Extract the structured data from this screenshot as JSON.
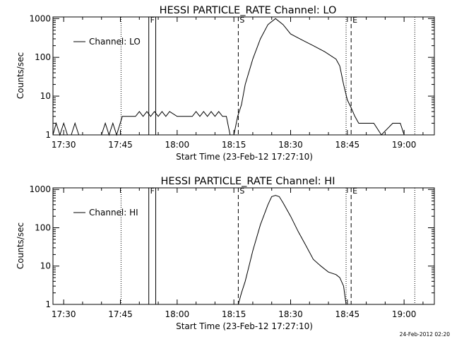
{
  "footer_timestamp": "24-Feb-2012 02:20",
  "chart_data": [
    {
      "type": "line",
      "title": "HESSI PARTICLE_RATE Channel: LO",
      "xlabel": "Start Time (23-Feb-12 17:27:10)",
      "ylabel": "Counts/sec",
      "yscale": "log",
      "xlim": [
        "17:27:10",
        "19:08:00"
      ],
      "ylim": [
        1,
        1100
      ],
      "x_ticks": [
        "17:30",
        "17:45",
        "18:00",
        "18:15",
        "18:30",
        "18:45",
        "19:00"
      ],
      "y_ticks": [
        "1",
        "10",
        "100",
        "1000"
      ],
      "legend": {
        "position": "top-left",
        "entries": [
          "Channel: LO"
        ]
      },
      "markers": [
        {
          "time": "17:52:30",
          "style": "solid",
          "label": "F"
        },
        {
          "time": "17:54:20",
          "style": "solid",
          "label": ""
        },
        {
          "time": "18:16:10",
          "style": "dashed",
          "label": "S"
        },
        {
          "time": "18:46:00",
          "style": "dashed",
          "label": "E"
        },
        {
          "time": "17:45:10",
          "style": "dotted",
          "label": ""
        },
        {
          "time": "18:44:40",
          "style": "dotted",
          "label": ""
        },
        {
          "time": "19:02:50",
          "style": "dotted",
          "label": ""
        }
      ],
      "series": [
        {
          "name": "Channel: LO",
          "x": [
            "17:27:10",
            "17:28:00",
            "17:29:00",
            "17:30:00",
            "17:31:00",
            "17:32:00",
            "17:33:00",
            "17:34:00",
            "17:36:00",
            "17:40:00",
            "17:41:00",
            "17:42:00",
            "17:43:00",
            "17:44:00",
            "17:45:30",
            "17:46:00",
            "17:47:00",
            "17:49:00",
            "17:50:00",
            "17:51:00",
            "17:52:00",
            "17:53:00",
            "17:54:00",
            "17:55:00",
            "17:56:00",
            "17:57:00",
            "17:58:00",
            "18:00:00",
            "18:02:00",
            "18:04:00",
            "18:05:00",
            "18:06:00",
            "18:07:00",
            "18:08:00",
            "18:09:00",
            "18:10:00",
            "18:11:00",
            "18:12:00",
            "18:13:00",
            "18:14:00",
            "18:15:00",
            "18:16:00",
            "18:17:00",
            "18:18:00",
            "18:20:00",
            "18:22:00",
            "18:24:00",
            "18:26:00",
            "18:28:00",
            "18:30:00",
            "18:33:00",
            "18:36:00",
            "18:39:00",
            "18:42:00",
            "18:43:00",
            "18:44:00",
            "18:45:00",
            "18:46:00",
            "18:47:00",
            "18:48:00",
            "18:49:00",
            "18:50:00",
            "18:51:00",
            "18:52:00",
            "18:54:00",
            "18:57:00",
            "18:59:00",
            "19:00:00",
            "19:01:00",
            "19:02:00",
            "19:03:00",
            "19:05:00",
            "19:07:00"
          ],
          "values": [
            1,
            2,
            1,
            2,
            1,
            1,
            2,
            1,
            1,
            1,
            2,
            1,
            2,
            1,
            3,
            3,
            3,
            3,
            4,
            3,
            4,
            3,
            4,
            3,
            4,
            3,
            4,
            3,
            3,
            3,
            4,
            3,
            4,
            3,
            4,
            3,
            4,
            3,
            3,
            1,
            1,
            3,
            6,
            20,
            90,
            300,
            700,
            1000,
            700,
            400,
            280,
            200,
            140,
            90,
            60,
            20,
            8,
            5,
            3,
            2,
            2,
            2,
            2,
            2,
            1,
            2,
            2,
            1,
            1,
            1,
            1,
            1,
            1
          ]
        }
      ]
    },
    {
      "type": "line",
      "title": "HESSI PARTICLE_RATE Channel: HI",
      "xlabel": "Start Time (23-Feb-12 17:27:10)",
      "ylabel": "Counts/sec",
      "yscale": "log",
      "xlim": [
        "17:27:10",
        "19:08:00"
      ],
      "ylim": [
        1,
        1100
      ],
      "x_ticks": [
        "17:30",
        "17:45",
        "18:00",
        "18:15",
        "18:30",
        "18:45",
        "19:00"
      ],
      "y_ticks": [
        "1",
        "10",
        "100",
        "1000"
      ],
      "legend": {
        "position": "top-left",
        "entries": [
          "Channel: HI"
        ]
      },
      "markers": [
        {
          "time": "17:52:30",
          "style": "solid",
          "label": "F"
        },
        {
          "time": "17:54:20",
          "style": "solid",
          "label": ""
        },
        {
          "time": "18:16:10",
          "style": "dashed",
          "label": "S"
        },
        {
          "time": "18:46:00",
          "style": "dashed",
          "label": "E"
        },
        {
          "time": "17:45:10",
          "style": "dotted",
          "label": ""
        },
        {
          "time": "18:44:40",
          "style": "dotted",
          "label": ""
        },
        {
          "time": "19:02:50",
          "style": "dotted",
          "label": ""
        }
      ],
      "series": [
        {
          "name": "Channel: HI",
          "x": [
            "18:16:10",
            "18:17:00",
            "18:18:00",
            "18:19:00",
            "18:20:00",
            "18:22:00",
            "18:24:00",
            "18:25:00",
            "18:26:00",
            "18:27:00",
            "18:28:00",
            "18:30:00",
            "18:32:00",
            "18:34:00",
            "18:36:00",
            "18:38:00",
            "18:40:00",
            "18:42:00",
            "18:43:00",
            "18:44:00",
            "18:44:40"
          ],
          "values": [
            1,
            2,
            4,
            10,
            25,
            120,
            400,
            650,
            700,
            650,
            450,
            200,
            80,
            35,
            15,
            10,
            7,
            6,
            5,
            3,
            1
          ]
        }
      ]
    }
  ]
}
